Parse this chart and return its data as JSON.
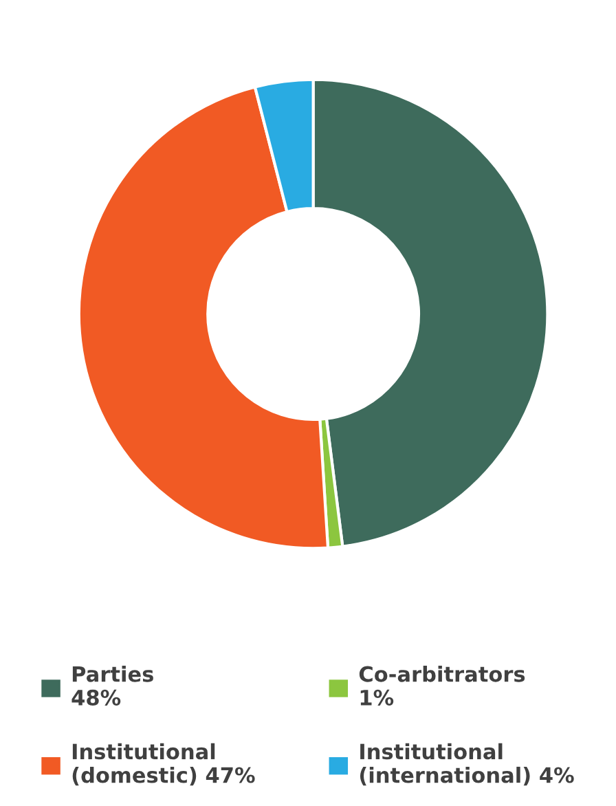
{
  "chart_data": {
    "type": "donut",
    "categories": [
      "Parties",
      "Co-arbitrators",
      "Institutional (domestic)",
      "Institutional (international)"
    ],
    "values": [
      48,
      1,
      47,
      4
    ],
    "value_labels": [
      "48%",
      "1%",
      "47%",
      "4%"
    ],
    "colors": [
      "#3e6b5c",
      "#8cc63f",
      "#f15a24",
      "#29abe2"
    ],
    "legend": "bottom"
  }
}
